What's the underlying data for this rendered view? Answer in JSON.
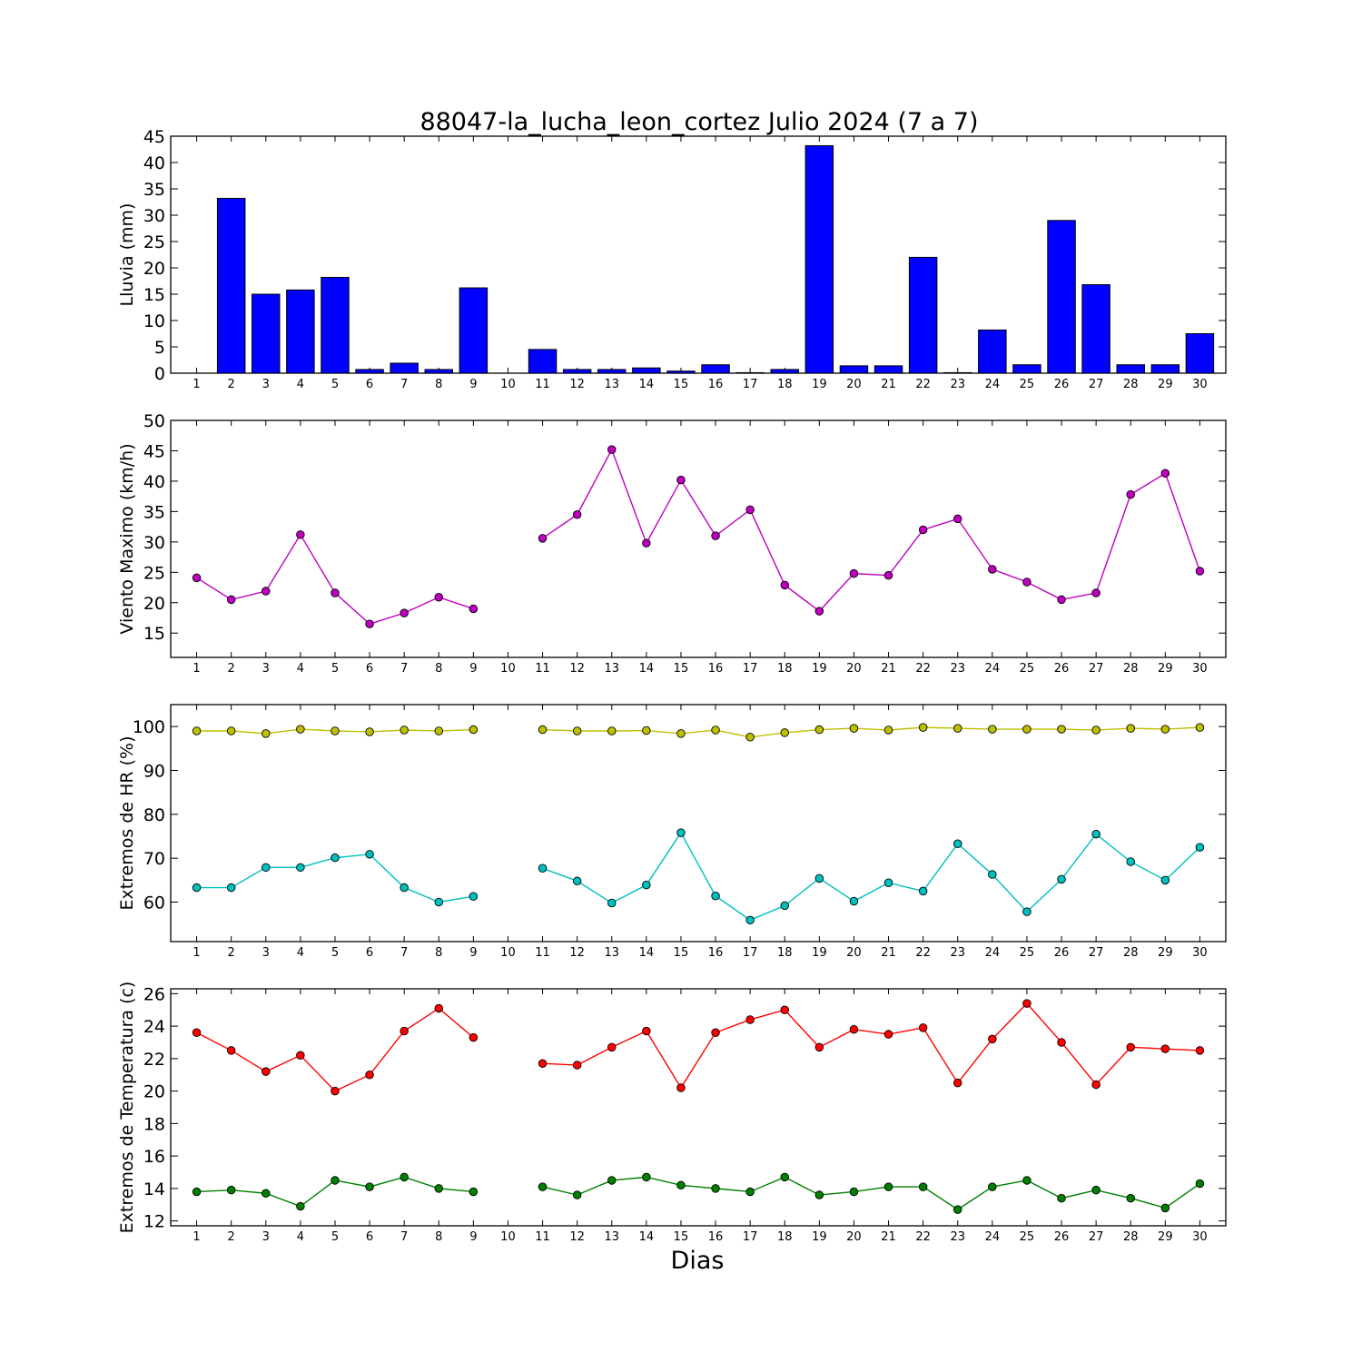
{
  "chart_data": [
    {
      "type": "bar",
      "title": "88047-la_lucha_leon_cortez Julio 2024  (7 a 7)",
      "ylabel": "Lluvia (mm)",
      "xlabel": "",
      "ylim": [
        0,
        45
      ],
      "yticks": [
        0,
        5,
        10,
        15,
        20,
        25,
        30,
        35,
        40,
        45
      ],
      "categories": [
        1,
        2,
        3,
        4,
        5,
        6,
        7,
        8,
        9,
        10,
        11,
        12,
        13,
        14,
        15,
        16,
        17,
        18,
        19,
        20,
        21,
        22,
        23,
        24,
        25,
        26,
        27,
        28,
        29,
        30
      ],
      "series": [
        {
          "color": "#0000ff",
          "values": [
            0,
            33.2,
            15,
            15.8,
            18.2,
            0.7,
            1.9,
            0.7,
            16.2,
            0,
            4.5,
            0.7,
            0.7,
            1.0,
            0.4,
            1.6,
            0.1,
            0.7,
            43.2,
            1.4,
            1.4,
            22,
            0.1,
            8.2,
            1.6,
            29,
            16.8,
            1.6,
            1.6,
            7.5
          ]
        }
      ]
    },
    {
      "type": "line",
      "ylabel": "Viento Maximo (km/h)",
      "xlabel": "",
      "ylim": [
        11,
        50
      ],
      "yticks": [
        15,
        20,
        25,
        30,
        35,
        40,
        45,
        50
      ],
      "x": [
        1,
        2,
        3,
        4,
        5,
        6,
        7,
        8,
        9,
        10,
        11,
        12,
        13,
        14,
        15,
        16,
        17,
        18,
        19,
        20,
        21,
        22,
        23,
        24,
        25,
        26,
        27,
        28,
        29,
        30
      ],
      "series": [
        {
          "color": "#bf00bf",
          "values": [
            24.1,
            20.5,
            21.9,
            31.2,
            21.6,
            16.5,
            18.3,
            20.9,
            19.0,
            null,
            30.6,
            34.5,
            45.2,
            29.8,
            40.2,
            31.0,
            35.3,
            22.9,
            18.6,
            24.8,
            24.5,
            32.0,
            33.8,
            25.5,
            23.4,
            20.5,
            21.6,
            37.8,
            41.3,
            25.2
          ]
        }
      ]
    },
    {
      "type": "line",
      "ylabel": "Extremos de HR (%)",
      "xlabel": "",
      "ylim": [
        51,
        105
      ],
      "yticks": [
        60,
        70,
        80,
        90,
        100
      ],
      "x": [
        1,
        2,
        3,
        4,
        5,
        6,
        7,
        8,
        9,
        10,
        11,
        12,
        13,
        14,
        15,
        16,
        17,
        18,
        19,
        20,
        21,
        22,
        23,
        24,
        25,
        26,
        27,
        28,
        29,
        30
      ],
      "series": [
        {
          "color": "#bfbf00",
          "values": [
            99,
            99,
            98.4,
            99.4,
            99,
            98.8,
            99.2,
            99,
            99.3,
            null,
            99.3,
            99,
            99,
            99.1,
            98.4,
            99.2,
            97.6,
            98.6,
            99.3,
            99.6,
            99.2,
            99.8,
            99.6,
            99.4,
            99.4,
            99.4,
            99.2,
            99.6,
            99.4,
            99.8
          ]
        },
        {
          "color": "#00bfbf",
          "values": [
            63.3,
            63.3,
            67.9,
            67.9,
            70.1,
            70.9,
            63.3,
            60,
            61.3,
            null,
            67.7,
            64.8,
            59.8,
            63.9,
            75.8,
            61.4,
            55.9,
            59.2,
            65.4,
            60.2,
            64.4,
            62.5,
            73.3,
            66.3,
            57.8,
            65.2,
            75.5,
            69.2,
            65,
            72.5
          ]
        }
      ]
    },
    {
      "type": "line",
      "ylabel": "Extremos de Temperatura (c)",
      "xlabel": "Dias",
      "ylim": [
        11.7,
        26.3
      ],
      "yticks": [
        12,
        14,
        16,
        18,
        20,
        22,
        24,
        26
      ],
      "x": [
        1,
        2,
        3,
        4,
        5,
        6,
        7,
        8,
        9,
        10,
        11,
        12,
        13,
        14,
        15,
        16,
        17,
        18,
        19,
        20,
        21,
        22,
        23,
        24,
        25,
        26,
        27,
        28,
        29,
        30
      ],
      "series": [
        {
          "color": "#ff0000",
          "values": [
            23.6,
            22.5,
            21.2,
            22.2,
            20.0,
            21.0,
            23.7,
            25.1,
            23.3,
            null,
            21.7,
            21.6,
            22.7,
            23.7,
            20.2,
            23.6,
            24.4,
            25.0,
            22.7,
            23.8,
            23.5,
            23.9,
            20.5,
            23.2,
            25.4,
            23.0,
            20.4,
            22.7,
            22.6,
            22.5
          ]
        },
        {
          "color": "#008000",
          "values": [
            13.8,
            13.9,
            13.7,
            12.9,
            14.5,
            14.1,
            14.7,
            14.0,
            13.8,
            null,
            14.1,
            13.6,
            14.5,
            14.7,
            14.2,
            14.0,
            13.8,
            14.7,
            13.6,
            13.8,
            14.1,
            14.1,
            12.7,
            14.1,
            14.5,
            13.4,
            13.9,
            13.4,
            12.8,
            14.3
          ]
        }
      ]
    }
  ]
}
